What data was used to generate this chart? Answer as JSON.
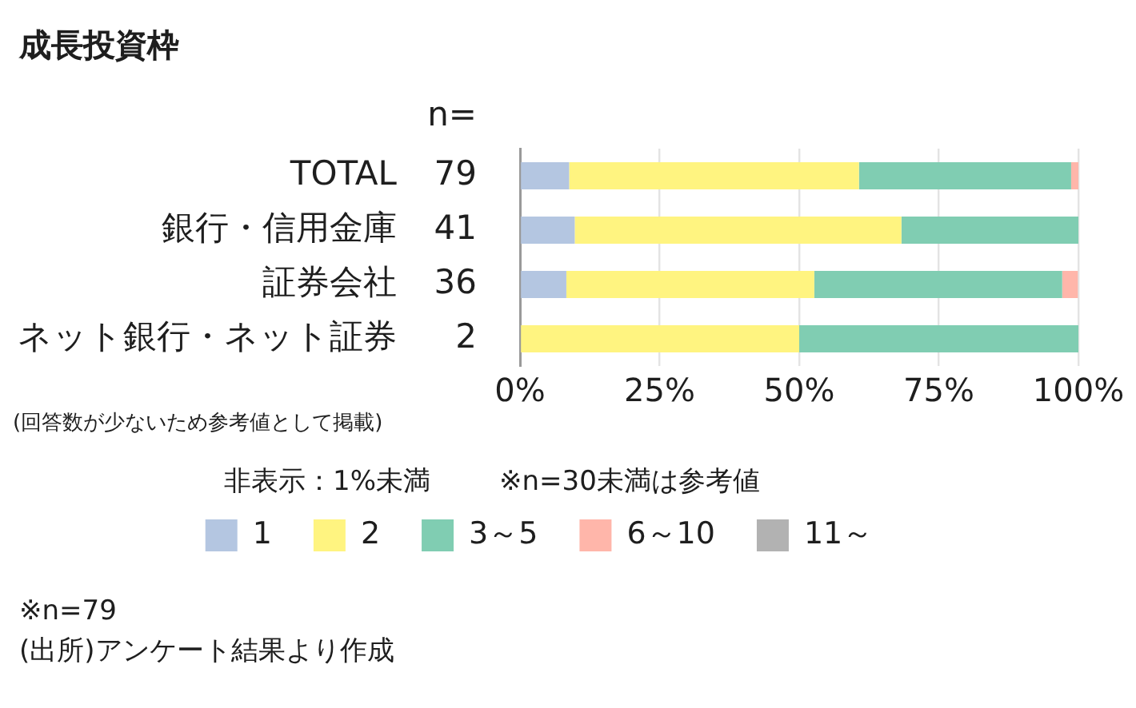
{
  "chart_data": {
    "type": "bar",
    "orientation": "horizontal",
    "stacked": true,
    "title": "成長投資枠",
    "categories": [
      "TOTAL",
      "銀行・信用金庫",
      "証券会社",
      "ネット銀行・ネット証券"
    ],
    "series": [
      {
        "name": "1",
        "color": "#b4c6e1",
        "values": [
          8.8,
          9.8,
          8.3,
          0
        ]
      },
      {
        "name": "2",
        "color": "#fff480",
        "values": [
          51.9,
          58.5,
          44.4,
          50
        ]
      },
      {
        "name": "3～5",
        "color": "#80cdb2",
        "values": [
          38.0,
          31.7,
          44.4,
          50
        ]
      },
      {
        "name": "6～10",
        "color": "#ffb6aa",
        "values": [
          1.3,
          0,
          2.8,
          0
        ]
      },
      {
        "name": "11～",
        "color": "#b2b2b2",
        "values": [
          0,
          0,
          0,
          0
        ]
      }
    ],
    "xlim": [
      0,
      100
    ],
    "xticks": [
      {
        "value": 0,
        "label": "0%"
      },
      {
        "value": 25,
        "label": "25%"
      },
      {
        "value": 50,
        "label": "50%"
      },
      {
        "value": 75,
        "label": "75%"
      },
      {
        "value": 100,
        "label": "100%"
      }
    ],
    "grid": "x",
    "legend": "bottom",
    "annotations": [
      "n=",
      "79",
      "41",
      "36",
      "2",
      "(回答数が少ないため参考値として掲載)",
      "非表示：1%未満",
      "※n=30未満は参考値",
      "※n=79",
      "(出所)アンケート結果より作成"
    ]
  }
}
